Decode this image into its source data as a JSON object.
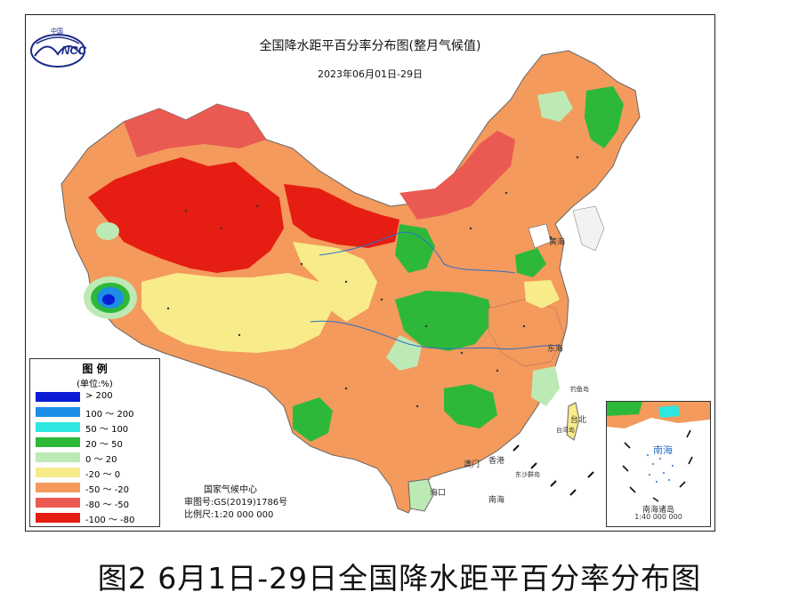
{
  "map": {
    "title": "全国降水距平百分率分布图(整月气候值)",
    "date_range": "2023年06月01日-29日",
    "logo_text": "NCC",
    "logo_top_text": "中国"
  },
  "legend": {
    "heading": "图 例",
    "unit": "(单位:%)",
    "items": [
      {
        "label": "> 200",
        "color": "#0a1bd6"
      },
      {
        "label": "100 ～ 200",
        "color": "#1e8ee6"
      },
      {
        "label": "50 ～ 100",
        "color": "#2ee8e0"
      },
      {
        "label": "20 ～ 50",
        "color": "#2db83a"
      },
      {
        "label": "0 ～ 20",
        "color": "#bde9b4"
      },
      {
        "label": "-20 ～ 0",
        "color": "#f8eb8a"
      },
      {
        "label": "-50 ～ -20",
        "color": "#f39a5c"
      },
      {
        "label": "-80 ～ -50",
        "color": "#ea5a52"
      },
      {
        "label": "-100 ～ -80",
        "color": "#e61d12"
      }
    ]
  },
  "credits": {
    "agency": "国家气候中心",
    "approval": "审图号:GS(2019)1786号",
    "scale": "比例尺:1:20 000 000"
  },
  "inset": {
    "sea_label": "南海",
    "islands_label": "南海诸岛",
    "scale": "1:40 000 000"
  },
  "places": {
    "hong_kong": "香港",
    "macau": "澳门",
    "hainan": "海口",
    "taibei": "台北",
    "taiwan": "台湾岛",
    "east_sea": "东海",
    "south_sea": "南海",
    "yellow_sea": "黄海",
    "dongsha": "东沙群岛",
    "diaoyu": "钓鱼岛"
  },
  "caption": "图2 6月1日-29日全国降水距平百分率分布图"
}
